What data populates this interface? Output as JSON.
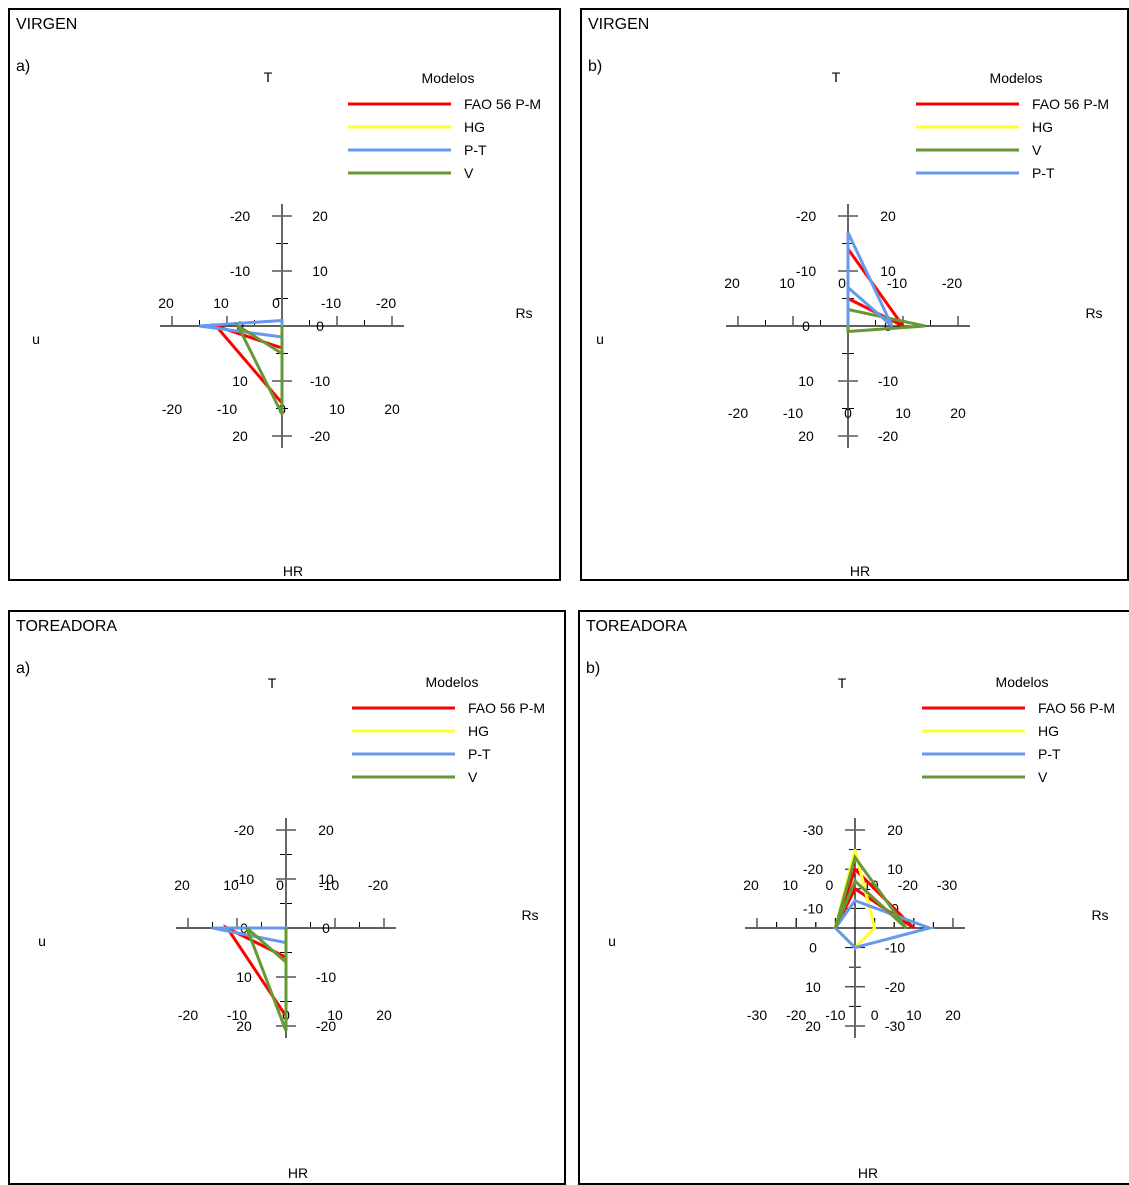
{
  "colors": {
    "FAO 56 P-M": "#ff0000",
    "HG": "#ffff33",
    "P-T": "#6699ee",
    "V": "#669933"
  },
  "chart_data": [
    {
      "type": "radar",
      "title": "VIRGEN",
      "panel_label": "a)",
      "legend_title": "Modelos",
      "legend": [
        "FAO 56 P-M",
        "HG",
        "P-T",
        "V"
      ],
      "axes": {
        "T": "T",
        "Rs": "Rs",
        "HR": "HR",
        "u": "u"
      },
      "ticks": {
        "T": [
          "-20",
          "-10",
          "0",
          "10",
          "20"
        ],
        "Rs": [
          "-20",
          "-10",
          "0",
          "10",
          "20"
        ],
        "HR": [
          "-20",
          "-10",
          "0",
          "10",
          "20"
        ],
        "u": [
          "-20",
          "-10",
          "0",
          "10",
          "20"
        ]
      },
      "range": [
        -20,
        20
      ],
      "series": [
        {
          "name": "FAO 56 P-M",
          "T": -4,
          "Rs": -12,
          "HR": 14,
          "u": 0
        },
        {
          "name": "HG",
          "T": -15,
          "Rs": 0,
          "HR": 0,
          "u": 0
        },
        {
          "name": "P-T",
          "T": -2,
          "Rs": -15,
          "HR": -1,
          "u": 0
        },
        {
          "name": "V",
          "T": -5,
          "Rs": -8,
          "HR": 16,
          "u": 0
        }
      ]
    },
    {
      "type": "radar",
      "title": "VIRGEN",
      "panel_label": "b)",
      "legend_title": "Modelos",
      "legend": [
        "FAO 56 P-M",
        "HG",
        "V",
        "P-T"
      ],
      "axes": {
        "T": "T",
        "Rs": "Rs",
        "HR": "HR",
        "u": "u"
      },
      "ticks": {
        "T": [
          "-20",
          "-10",
          "0",
          "10",
          "20"
        ],
        "Rs": [
          "-20",
          "-10",
          "0",
          "10",
          "20"
        ],
        "HR": [
          "-20",
          "-10",
          "0",
          "10",
          "20"
        ],
        "u": [
          "-20",
          "-10",
          "0",
          "10",
          "20"
        ]
      },
      "range": [
        -20,
        20
      ],
      "series": [
        {
          "name": "FAO 56 P-M",
          "T": 5,
          "Rs": 10,
          "HR": -14,
          "u": 0
        },
        {
          "name": "HG",
          "T": 15,
          "Rs": 0,
          "HR": 0,
          "u": 0
        },
        {
          "name": "V",
          "T": 3,
          "Rs": 14,
          "HR": 1,
          "u": 0
        },
        {
          "name": "P-T",
          "T": 7,
          "Rs": 8,
          "HR": -17,
          "u": 0
        }
      ]
    },
    {
      "type": "radar",
      "title": "TOREADORA",
      "panel_label": "a)",
      "legend_title": "Modelos",
      "legend": [
        "FAO 56 P-M",
        "HG",
        "P-T",
        "V"
      ],
      "axes": {
        "T": "T",
        "Rs": "Rs",
        "HR": "HR",
        "u": "u"
      },
      "ticks": {
        "T": [
          "-20",
          "-10",
          "0",
          "10",
          "20"
        ],
        "Rs": [
          "-20",
          "-10",
          "0",
          "10",
          "20"
        ],
        "HR": [
          "-20",
          "-10",
          "0",
          "10",
          "20"
        ],
        "u": [
          "-20",
          "-10",
          "0",
          "10",
          "20"
        ]
      },
      "range": [
        -20,
        20
      ],
      "series": [
        {
          "name": "FAO 56 P-M",
          "T": -6,
          "Rs": -12,
          "HR": 18,
          "u": 0
        },
        {
          "name": "HG",
          "T": -15,
          "Rs": 0,
          "HR": 0,
          "u": 0
        },
        {
          "name": "P-T",
          "T": -3,
          "Rs": -15,
          "HR": 0,
          "u": 0
        },
        {
          "name": "V",
          "T": -7,
          "Rs": -8,
          "HR": 21,
          "u": 0
        }
      ]
    },
    {
      "type": "radar",
      "title": "TOREADORA",
      "panel_label": "b)",
      "legend_title": "Modelos",
      "legend": [
        "FAO 56 P-M",
        "HG",
        "P-T",
        "V"
      ],
      "axes": {
        "T": "T",
        "Rs": "Rs",
        "HR": "HR",
        "u": "u"
      },
      "ticks": {
        "T": [
          "-30",
          "-20",
          "-10",
          "0",
          "10",
          "20"
        ],
        "Rs": [
          "-30",
          "-20",
          "-10",
          "0",
          "10",
          "20"
        ],
        "HR": [
          "-30",
          "-20",
          "-10",
          "0",
          "10",
          "20"
        ],
        "u": [
          "-30",
          "-20",
          "-10",
          "0",
          "10",
          "20"
        ]
      },
      "range": [
        -30,
        20
      ],
      "series": [
        {
          "name": "FAO 56 P-M",
          "T": 5,
          "Rs": 10,
          "HR": -20,
          "u": 0
        },
        {
          "name": "HG",
          "T": 15,
          "Rs": 0,
          "HR": 0,
          "u": 0
        },
        {
          "name": "P-T",
          "T": 2,
          "Rs": 14,
          "HR": 0,
          "u": 0
        },
        {
          "name": "V",
          "T": 7,
          "Rs": 8,
          "HR": -23,
          "u": 0
        }
      ]
    }
  ]
}
